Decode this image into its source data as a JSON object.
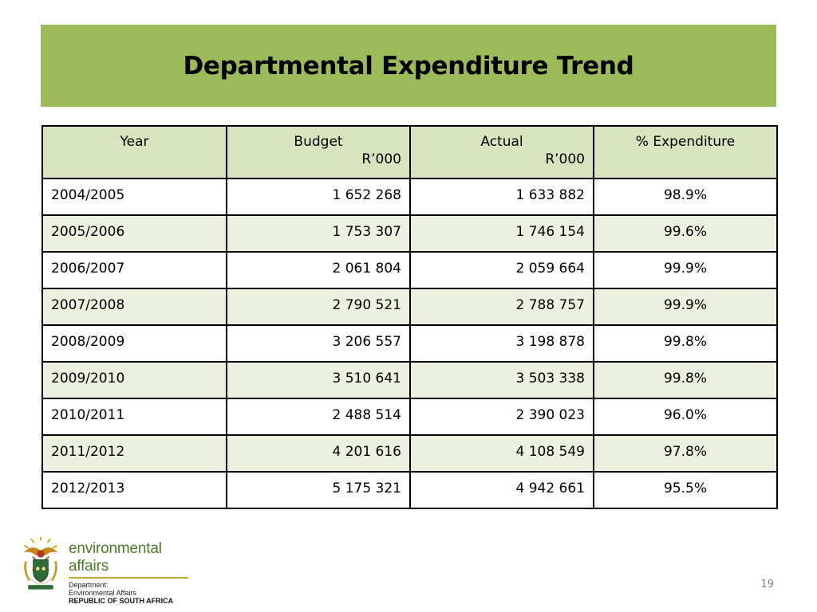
{
  "slide": {
    "title": "Departmental Expenditure Trend",
    "page_number": "19"
  },
  "table": {
    "headers": {
      "year": "Year",
      "budget": "Budget",
      "budget_unit": "R’000",
      "actual": "Actual",
      "actual_unit": "R’000",
      "pct": "% Expenditure"
    },
    "rows": [
      {
        "year": "2004/2005",
        "budget": "1 652 268",
        "actual": "1 633 882",
        "pct": "98.9%"
      },
      {
        "year": "2005/2006",
        "budget": "1 753 307",
        "actual": "1 746 154",
        "pct": "99.6%"
      },
      {
        "year": "2006/2007",
        "budget": "2 061 804",
        "actual": "2 059 664",
        "pct": "99.9%"
      },
      {
        "year": "2007/2008",
        "budget": "2 790 521",
        "actual": "2 788 757",
        "pct": "99.9%"
      },
      {
        "year": "2008/2009",
        "budget": "3 206 557",
        "actual": "3 198 878",
        "pct": "99.8%"
      },
      {
        "year": "2009/2010",
        "budget": "3 510 641",
        "actual": "3 503 338",
        "pct": "99.8%"
      },
      {
        "year": "2010/2011",
        "budget": "2 488 514",
        "actual": "2 390 023",
        "pct": "96.0%"
      },
      {
        "year": "2011/2012",
        "budget": "4 201 616",
        "actual": "4 108 549",
        "pct": "97.8%"
      },
      {
        "year": "2012/2013",
        "budget": "5 175 321",
        "actual": "4 942 661",
        "pct": "95.5%"
      }
    ]
  },
  "logo": {
    "name": "environmental affairs",
    "line1": "Department:",
    "line2": "Environmental Affairs",
    "line3": "REPUBLIC OF SOUTH AFRICA",
    "emblem_icon": "coat-of-arms-icon"
  },
  "colors": {
    "title_band": "#9bbb59",
    "header_fill": "#d7e4bd",
    "band_fill": "#ebf1de",
    "logo_text": "#4a7a2a"
  }
}
